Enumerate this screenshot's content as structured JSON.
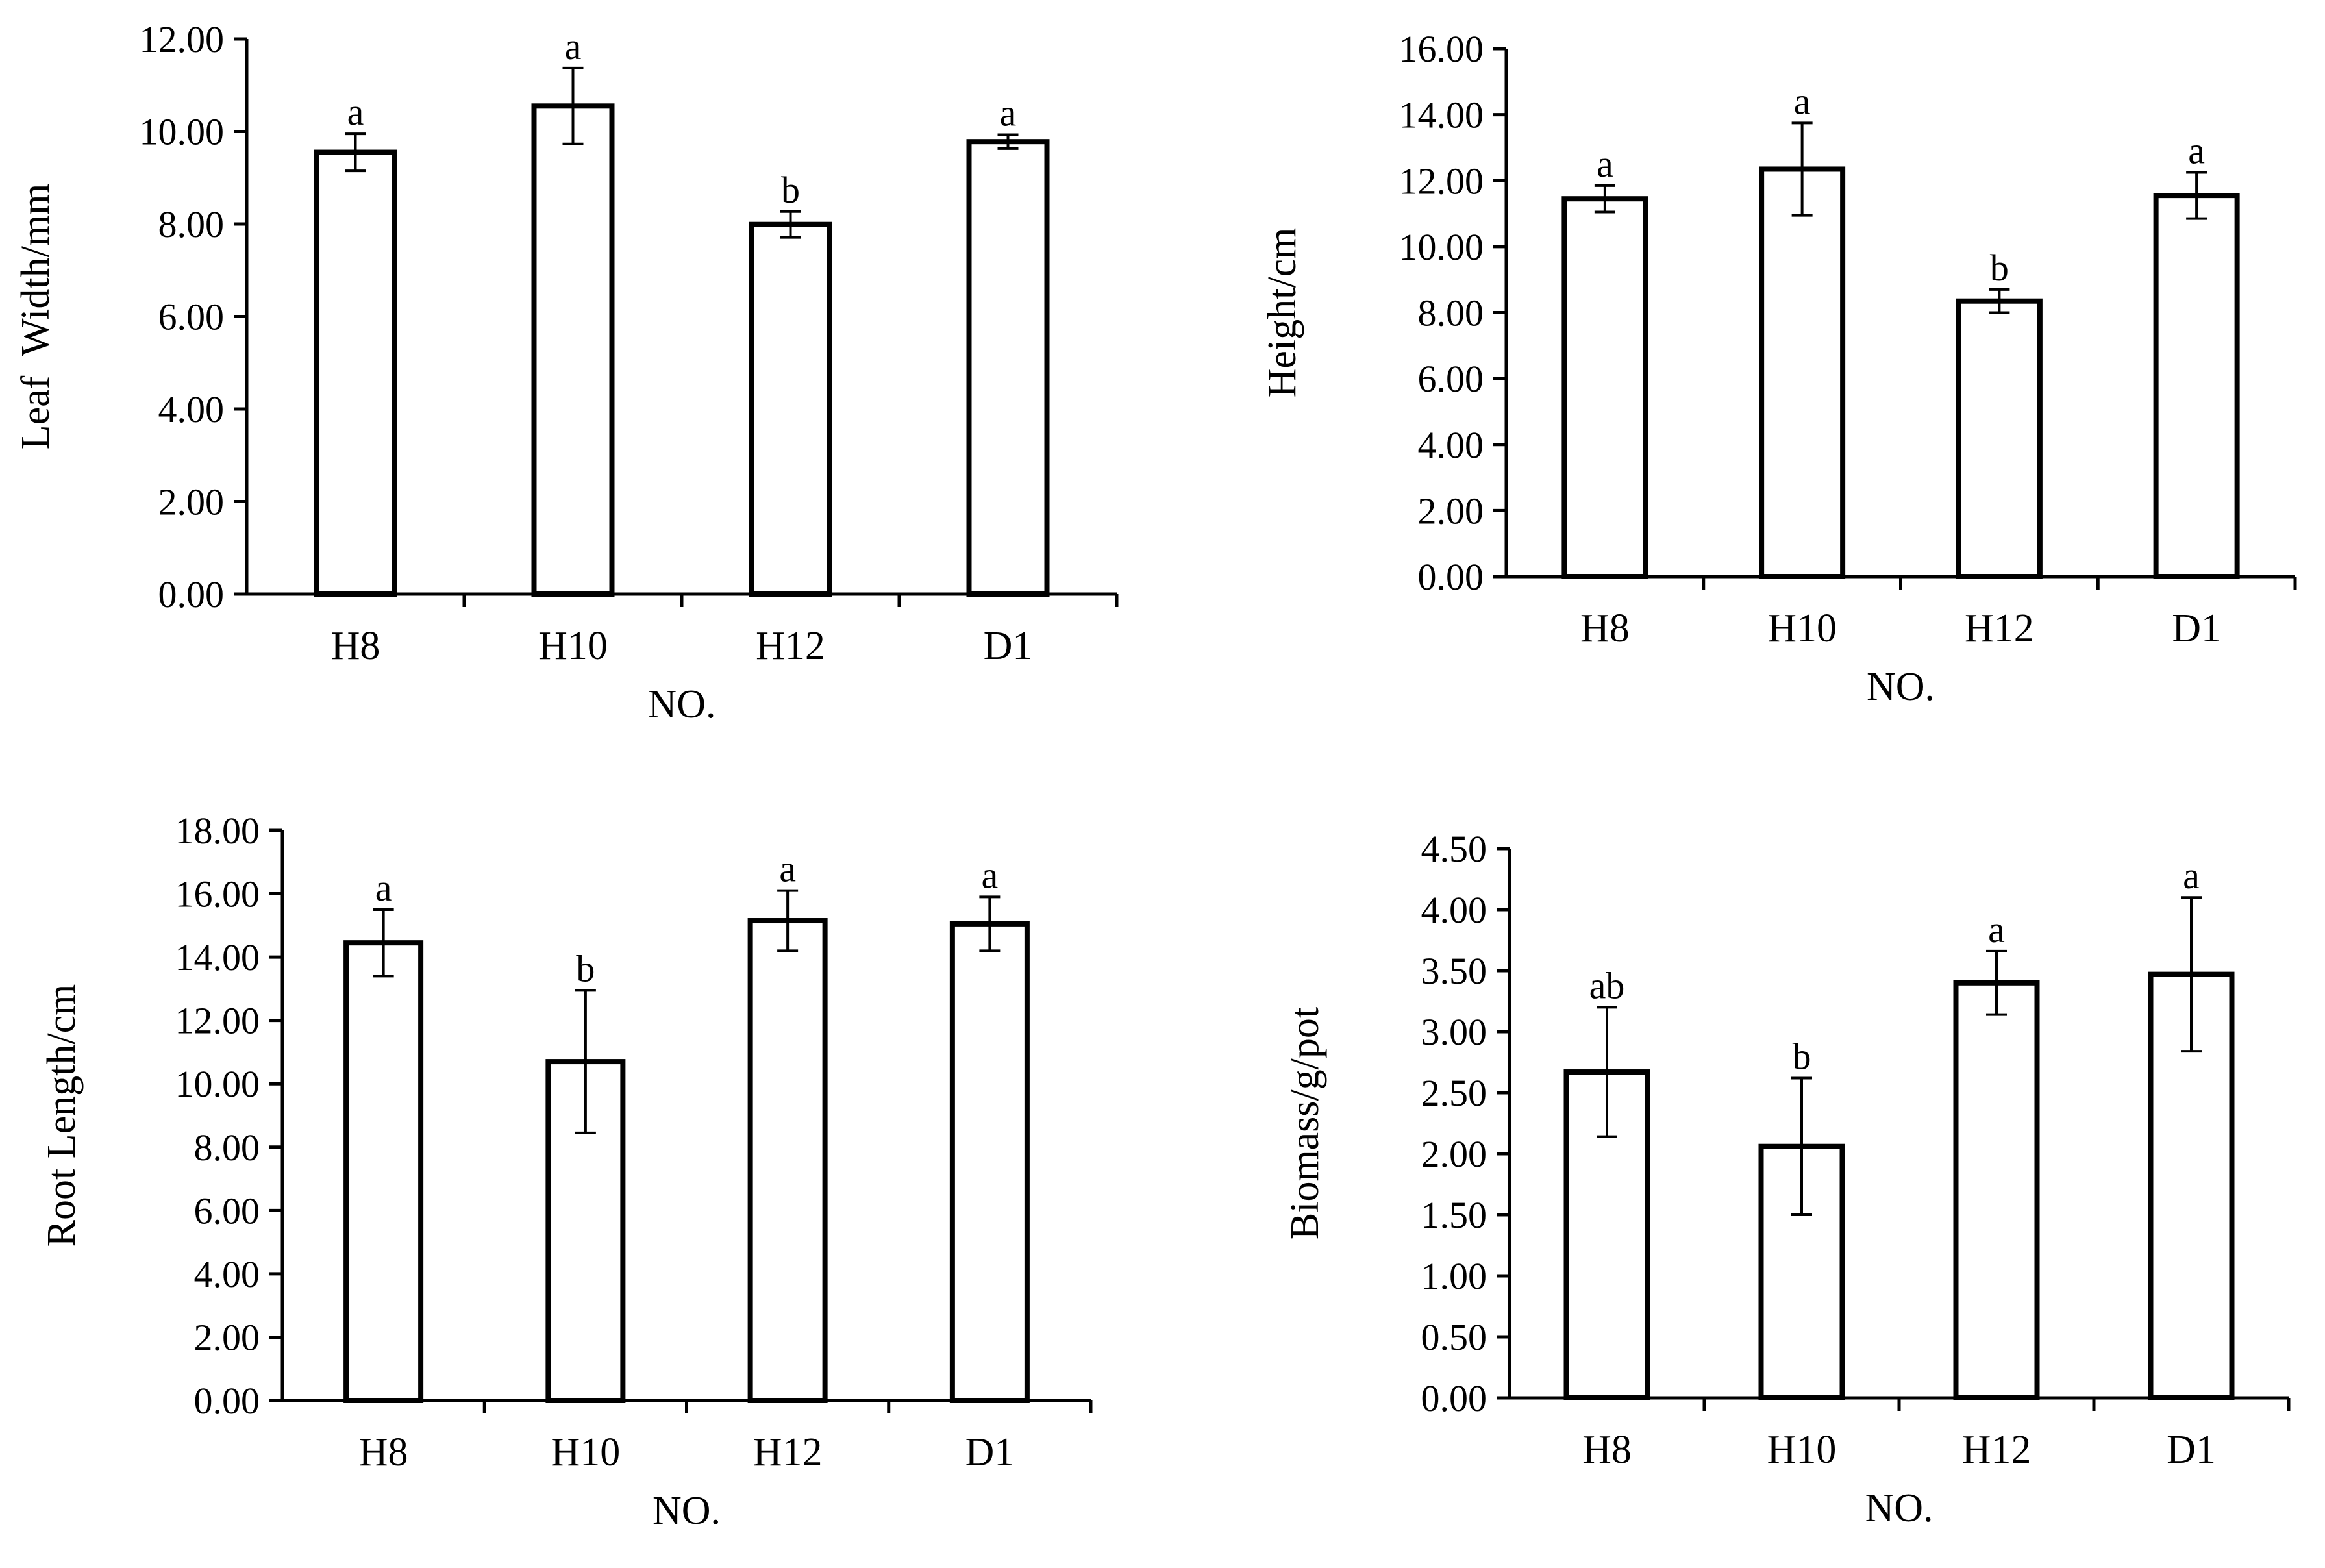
{
  "chart_data": [
    {
      "type": "bar",
      "title": "",
      "categories": [
        "H8",
        "H10",
        "H12",
        "D1"
      ],
      "values": [
        9.55,
        10.55,
        7.99,
        9.78
      ],
      "errors": [
        0.4,
        0.82,
        0.28,
        0.15
      ],
      "significance": [
        "a",
        "a",
        "b",
        "a"
      ],
      "xlabel": "NO.",
      "ylabel": "Leaf  Width/mm",
      "ylim": [
        0,
        12
      ],
      "yticks": [
        "0.00",
        "2.00",
        "4.00",
        "6.00",
        "8.00",
        "10.00",
        "12.00"
      ],
      "grid": false
    },
    {
      "type": "bar",
      "title": "",
      "categories": [
        "H8",
        "H10",
        "H12",
        "D1"
      ],
      "values": [
        11.45,
        12.35,
        8.35,
        11.55
      ],
      "errors": [
        0.4,
        1.4,
        0.35,
        0.7
      ],
      "significance": [
        "a",
        "a",
        "b",
        "a"
      ],
      "xlabel": "NO.",
      "ylabel": "Height/cm",
      "ylim": [
        0,
        16
      ],
      "yticks": [
        "0.00",
        "2.00",
        "4.00",
        "6.00",
        "8.00",
        "10.00",
        "12.00",
        "14.00",
        "16.00"
      ],
      "grid": false
    },
    {
      "type": "bar",
      "title": "",
      "categories": [
        "H8",
        "H10",
        "H12",
        "D1"
      ],
      "values": [
        14.45,
        10.7,
        15.15,
        15.05
      ],
      "errors": [
        1.05,
        2.25,
        0.95,
        0.85
      ],
      "significance": [
        "a",
        "b",
        "a",
        "a"
      ],
      "xlabel": "NO.",
      "ylabel": "Root Length/cm",
      "ylim": [
        0,
        18
      ],
      "yticks": [
        "0.00",
        "2.00",
        "4.00",
        "6.00",
        "8.00",
        "10.00",
        "12.00",
        "14.00",
        "16.00",
        "18.00"
      ],
      "grid": false
    },
    {
      "type": "bar",
      "title": "",
      "categories": [
        "H8",
        "H10",
        "H12",
        "D1"
      ],
      "values": [
        2.67,
        2.06,
        3.4,
        3.47
      ],
      "errors": [
        0.53,
        0.56,
        0.26,
        0.63
      ],
      "significance": [
        "ab",
        "b",
        "a",
        "a"
      ],
      "xlabel": "NO.",
      "ylabel": "Biomass/g/pot",
      "ylim": [
        0,
        4.5
      ],
      "yticks": [
        "0.00",
        "0.50",
        "1.00",
        "1.50",
        "2.00",
        "2.50",
        "3.00",
        "3.50",
        "4.00",
        "4.50"
      ],
      "grid": false
    }
  ]
}
